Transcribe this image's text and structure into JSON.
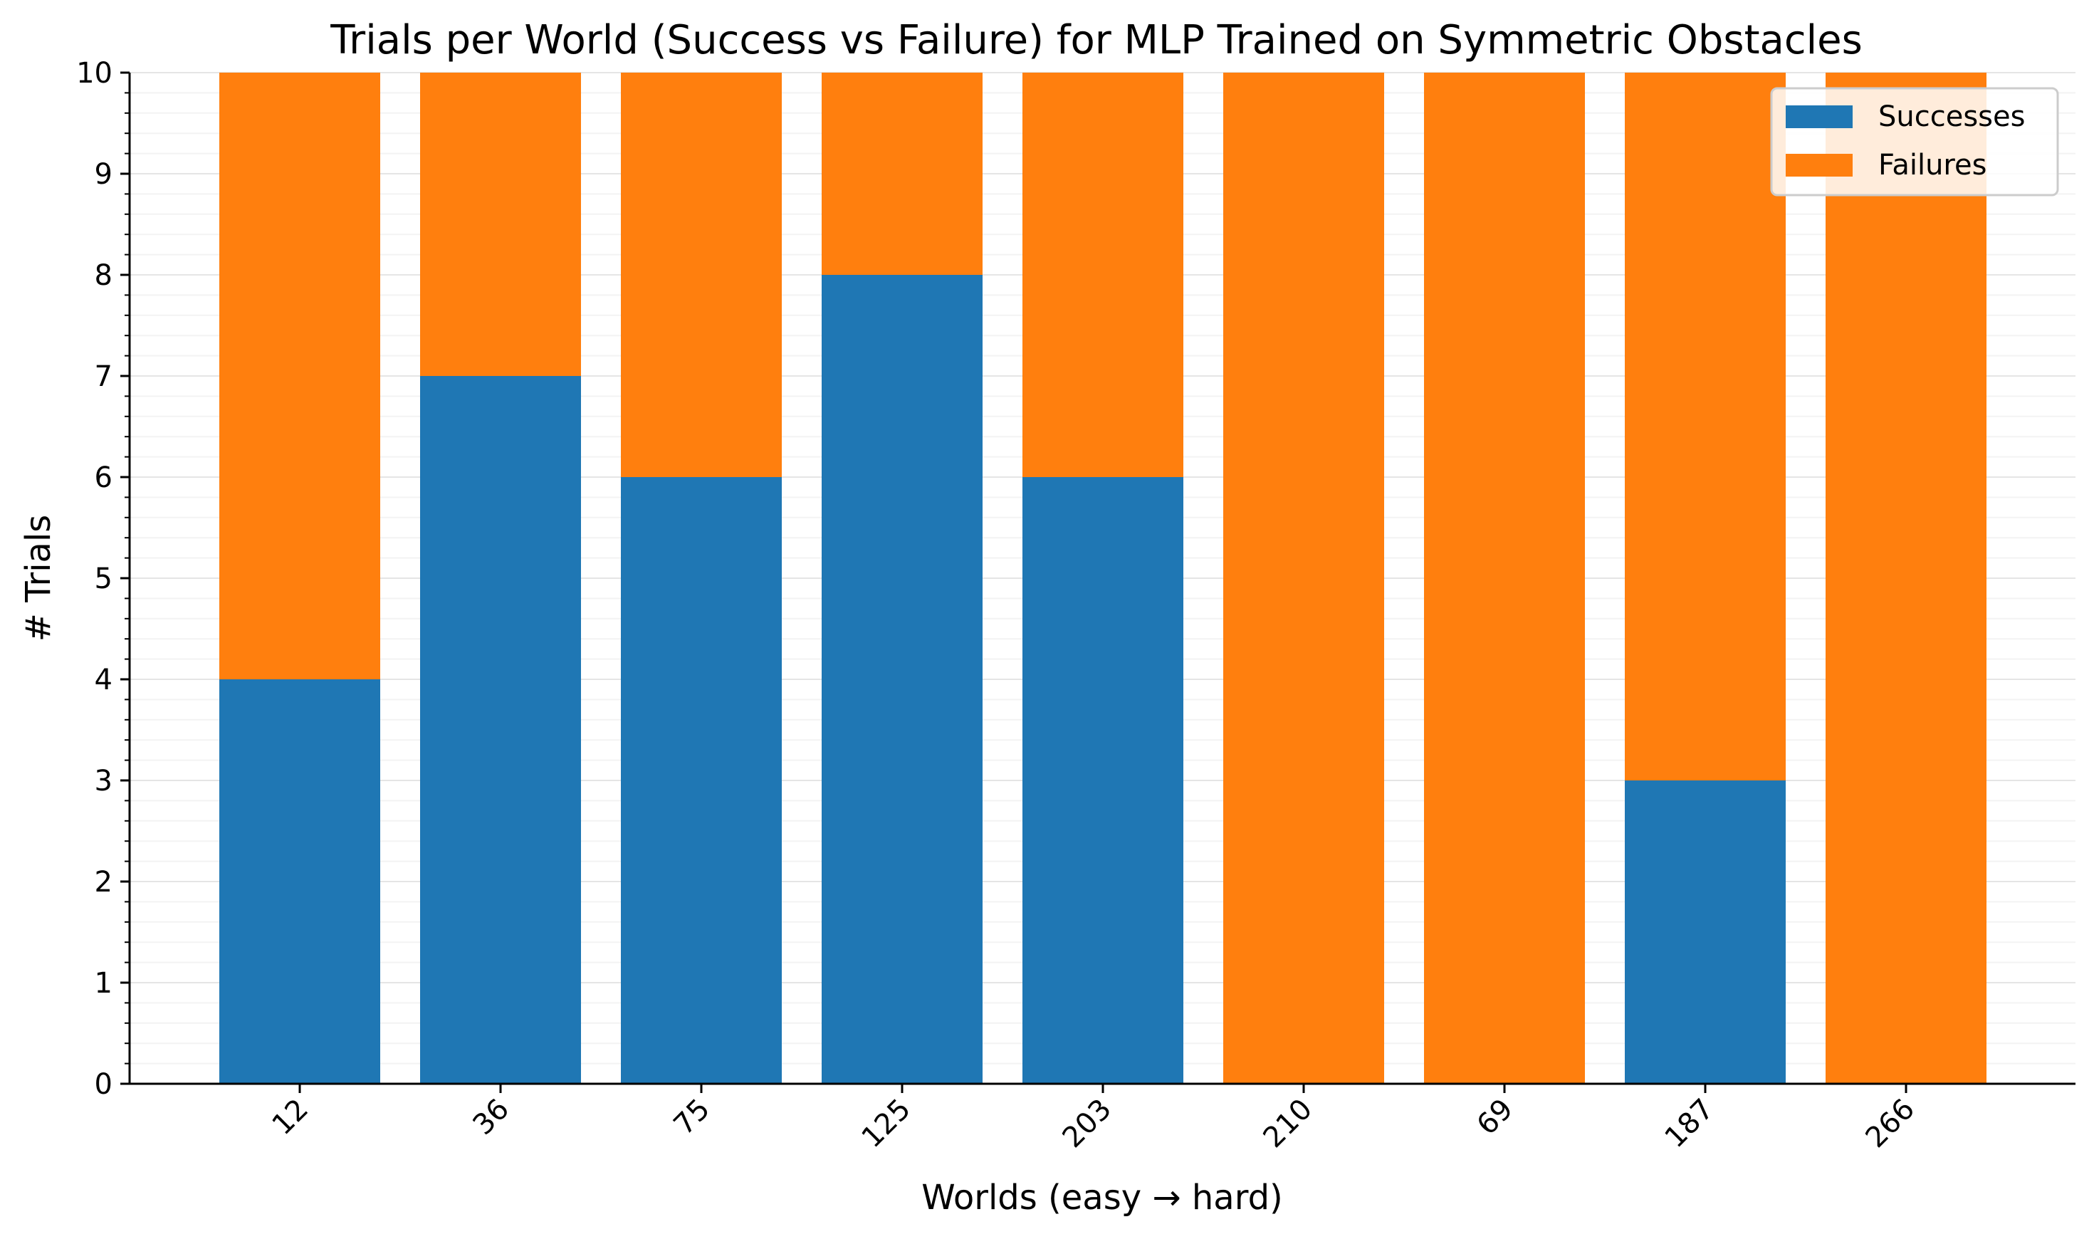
{
  "chart_data": {
    "type": "bar",
    "stacked": true,
    "title": "Trials per World (Success vs Failure) for MLP Trained on Symmetric Obstacles",
    "xlabel": "Worlds (easy → hard)",
    "ylabel": "# Trials",
    "categories": [
      "12",
      "36",
      "75",
      "125",
      "203",
      "210",
      "69",
      "187",
      "266"
    ],
    "series": [
      {
        "name": "Successes",
        "color": "#1f77b4",
        "values": [
          4,
          7,
          6,
          8,
          6,
          0,
          0,
          3,
          0
        ]
      },
      {
        "name": "Failures",
        "color": "#ff7f0e",
        "values": [
          6,
          3,
          4,
          2,
          4,
          10,
          10,
          7,
          10
        ]
      }
    ],
    "ylim": [
      0,
      10
    ],
    "yticks": [
      0,
      1,
      2,
      3,
      4,
      5,
      6,
      7,
      8,
      9,
      10
    ],
    "grid": true,
    "legend_position": "top-right",
    "xtick_rotation": 45
  }
}
